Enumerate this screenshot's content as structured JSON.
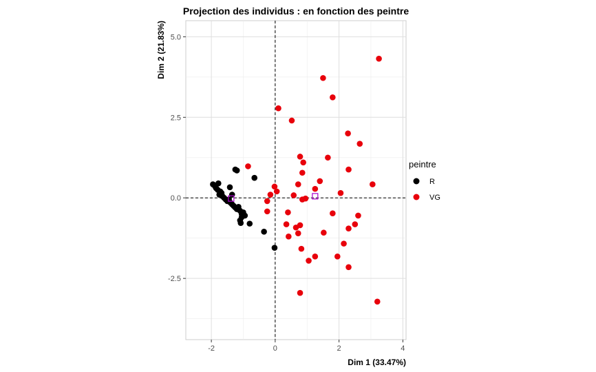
{
  "chart_data": {
    "type": "scatter",
    "title": "Projection des individus : en fonction des peintre",
    "xlabel": "Dim 1 (33.47%)",
    "ylabel": "Dim 2 (21.83%)",
    "xlim": [
      -2.8,
      4.1
    ],
    "ylim": [
      -4.4,
      5.5
    ],
    "x_ticks": [
      -2,
      0,
      2,
      4
    ],
    "x_tick_labels": [
      "-2",
      "0",
      "2",
      "4"
    ],
    "y_ticks": [
      -2.5,
      0,
      2.5,
      5
    ],
    "y_tick_labels": [
      "-2.5",
      "0.0",
      "2.5",
      "5.0"
    ],
    "grid": true,
    "reference_lines": {
      "x": 0,
      "y": 0,
      "style": "dashed"
    },
    "legend": {
      "title": "peintre",
      "position": "right",
      "entries": [
        {
          "label": "R",
          "color": "#000000"
        },
        {
          "label": "VG",
          "color": "#e8000b"
        }
      ]
    },
    "series": [
      {
        "name": "R",
        "color": "#000000",
        "points": [
          [
            -1.95,
            0.42
          ],
          [
            -1.88,
            0.35
          ],
          [
            -1.78,
            0.45
          ],
          [
            -1.85,
            0.3
          ],
          [
            -1.8,
            0.25
          ],
          [
            -1.72,
            0.2
          ],
          [
            -1.75,
            0.1
          ],
          [
            -1.68,
            0.15
          ],
          [
            -1.65,
            0.05
          ],
          [
            -1.6,
            0.0
          ],
          [
            -1.55,
            -0.05
          ],
          [
            -1.5,
            -0.1
          ],
          [
            -1.45,
            -0.05
          ],
          [
            -1.4,
            -0.15
          ],
          [
            -1.35,
            -0.2
          ],
          [
            -1.3,
            -0.25
          ],
          [
            -1.25,
            -0.3
          ],
          [
            -1.2,
            -0.35
          ],
          [
            -1.15,
            -0.28
          ],
          [
            -1.1,
            -0.4
          ],
          [
            -1.05,
            -0.5
          ],
          [
            -1.0,
            -0.45
          ],
          [
            -1.05,
            -0.6
          ],
          [
            -1.1,
            -0.7
          ],
          [
            -0.95,
            -0.55
          ],
          [
            -1.08,
            -0.78
          ],
          [
            -1.25,
            0.88
          ],
          [
            -1.2,
            0.85
          ],
          [
            -0.65,
            0.62
          ],
          [
            -1.42,
            0.33
          ],
          [
            -1.35,
            0.1
          ],
          [
            -0.8,
            -0.8
          ],
          [
            -0.35,
            -1.05
          ],
          [
            -0.02,
            -1.55
          ]
        ]
      },
      {
        "name": "VG",
        "color": "#e8000b",
        "points": [
          [
            3.25,
            4.32
          ],
          [
            1.5,
            3.72
          ],
          [
            1.8,
            3.12
          ],
          [
            0.1,
            2.78
          ],
          [
            0.52,
            2.4
          ],
          [
            2.28,
            2.0
          ],
          [
            2.65,
            1.68
          ],
          [
            1.65,
            1.25
          ],
          [
            0.78,
            1.28
          ],
          [
            0.88,
            1.1
          ],
          [
            -0.85,
            0.98
          ],
          [
            2.3,
            0.88
          ],
          [
            0.85,
            0.78
          ],
          [
            1.4,
            0.52
          ],
          [
            0.72,
            0.42
          ],
          [
            3.05,
            0.42
          ],
          [
            -0.02,
            0.35
          ],
          [
            0.05,
            0.2
          ],
          [
            1.25,
            0.28
          ],
          [
            2.05,
            0.15
          ],
          [
            -0.15,
            0.1
          ],
          [
            0.58,
            0.08
          ],
          [
            0.95,
            -0.02
          ],
          [
            0.85,
            -0.05
          ],
          [
            -0.25,
            -0.1
          ],
          [
            -0.25,
            -0.42
          ],
          [
            0.4,
            -0.45
          ],
          [
            1.8,
            -0.48
          ],
          [
            2.6,
            -0.55
          ],
          [
            0.35,
            -0.82
          ],
          [
            0.78,
            -0.85
          ],
          [
            0.65,
            -0.92
          ],
          [
            2.5,
            -0.82
          ],
          [
            2.3,
            -0.95
          ],
          [
            0.72,
            -1.1
          ],
          [
            1.52,
            -1.08
          ],
          [
            0.42,
            -1.2
          ],
          [
            2.15,
            -1.42
          ],
          [
            0.82,
            -1.58
          ],
          [
            1.25,
            -1.82
          ],
          [
            1.95,
            -1.82
          ],
          [
            1.05,
            -1.95
          ],
          [
            2.3,
            -2.15
          ],
          [
            0.78,
            -2.95
          ],
          [
            3.2,
            -3.22
          ]
        ]
      }
    ],
    "group_means": {
      "marker": "open-square",
      "color": "#aa00cc",
      "points": [
        {
          "label": "R",
          "x": -1.38,
          "y": -0.02
        },
        {
          "label": "VG",
          "x": 1.25,
          "y": 0.05
        }
      ]
    }
  }
}
